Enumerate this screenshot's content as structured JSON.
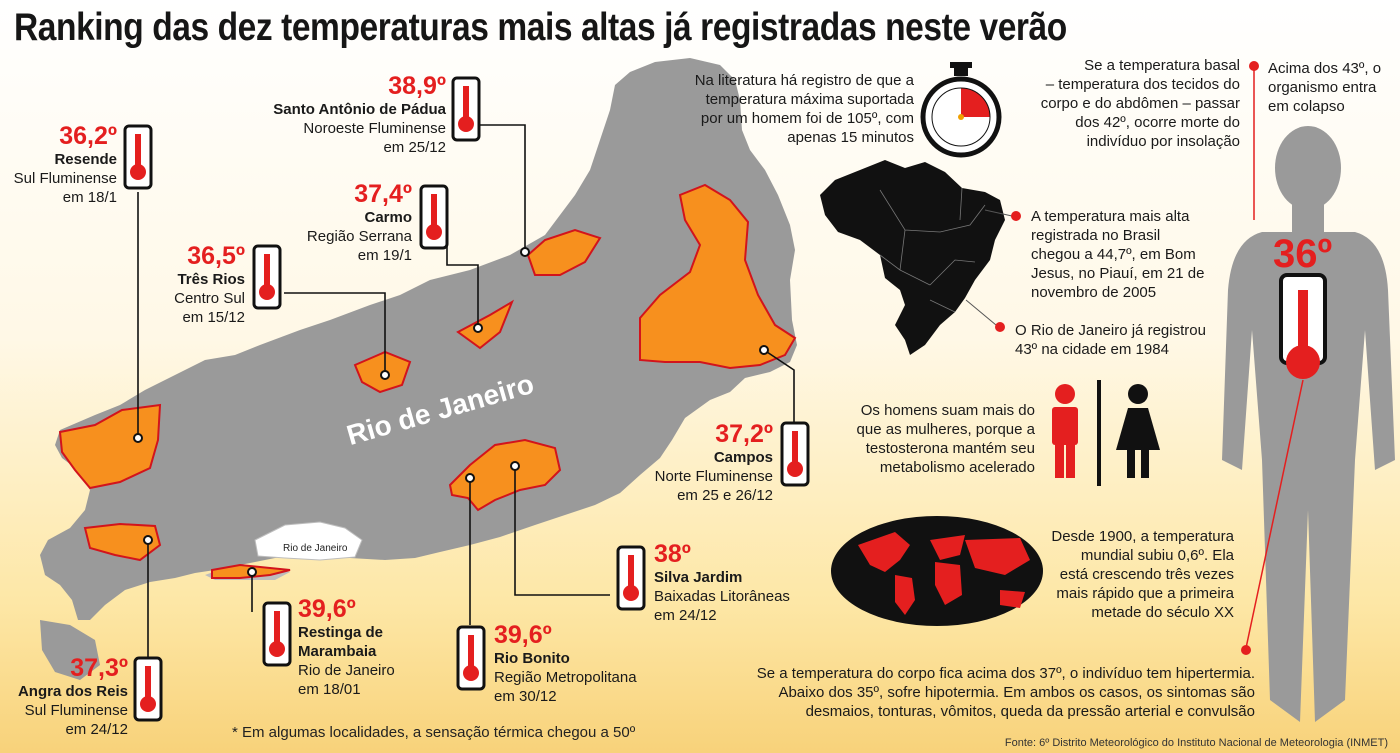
{
  "title": "Ranking das dez temperaturas mais altas já registradas neste verão",
  "map_label": "Rio de Janeiro",
  "capital_label": "Rio de Janeiro",
  "locations": [
    {
      "temp": "36,2º",
      "city": "Resende",
      "region": "Sul Fluminense",
      "date": "em 18/1"
    },
    {
      "temp": "38,9º",
      "city": "Santo Antônio de Pádua",
      "region": "Noroeste Fluminense",
      "date": "em 25/12"
    },
    {
      "temp": "37,4º",
      "city": "Carmo",
      "region": "Região Serrana",
      "date": "em 19/1"
    },
    {
      "temp": "36,5º",
      "city": "Três Rios",
      "region": "Centro Sul",
      "date": "em 15/12"
    },
    {
      "temp": "37,2º",
      "city": "Campos",
      "region": "Norte Fluminense",
      "date": "em 25 e 26/12"
    },
    {
      "temp": "38º",
      "city": "Silva Jardim",
      "region": "Baixadas Litorâneas",
      "date": "em 24/12"
    },
    {
      "temp": "39,6º",
      "city": "Rio Bonito",
      "region": "Região Metropolitana",
      "date": "em 30/12"
    },
    {
      "temp": "39,6º",
      "city": "Restinga de",
      "city2": "Marambaia",
      "region": "Rio de Janeiro",
      "date": "em 18/01"
    },
    {
      "temp": "37,3º",
      "city": "Angra dos Reis",
      "region": "Sul Fluminense",
      "date": "em 24/12"
    }
  ],
  "footnote": "* Em algumas localidades, a sensação  térmica chegou a 50º",
  "notes": {
    "stopwatch": [
      "Na literatura há registro de que a",
      "temperatura máxima suportada",
      "por um homem foi de 105º, com",
      "apenas 15 minutos"
    ],
    "brazil_record": [
      "A temperatura mais alta",
      "registrada no Brasil",
      "chegou a 44,7º, em Bom",
      "Jesus, no Piauí, em 21 de",
      "novembro de 2005"
    ],
    "rio_record": [
      "O Rio de Janeiro já registrou",
      "43º na cidade em 1984"
    ],
    "sweat": [
      "Os homens suam mais do",
      "que as mulheres, porque a",
      "testosterona mantém seu",
      "metabolismo acelerado"
    ],
    "world": [
      "Desde 1900, a temperatura",
      "mundial subiu 0,6º. Ela",
      "está crescendo três vezes",
      "mais rápido que a primeira",
      "metade do século XX"
    ],
    "basal": [
      "Se a temperatura basal",
      "– temperatura dos tecidos do",
      "corpo e do abdômen – passar",
      "dos 42º, ocorre morte do",
      "indivíduo por insolação"
    ],
    "collapse": [
      "Acima dos 43º, o",
      "organismo entra",
      "em colapso"
    ],
    "hyper": [
      "Se a temperatura do corpo fica acima dos 37º, o indivíduo tem hipertermia.",
      "Abaixo dos 35º, sofre hipotermia. Em ambos os casos, os sintomas são",
      "desmaios, tonturas, vômitos, queda da pressão arterial e convulsão"
    ]
  },
  "body_temp": "36º",
  "source": "Fonte: 6º Distrito Meteorológico do Instituto Nacional de Meteorologia (INMET)",
  "colors": {
    "accent_red": "#e41f1f",
    "map_gray": "#9a9a9a",
    "highlight_orange": "#f7901e",
    "background_yellow": "#fde7a6"
  },
  "icons": [
    "thermometer-icon",
    "stopwatch-icon",
    "man-icon",
    "woman-icon",
    "world-map-icon",
    "brazil-map-icon",
    "human-body-icon"
  ]
}
